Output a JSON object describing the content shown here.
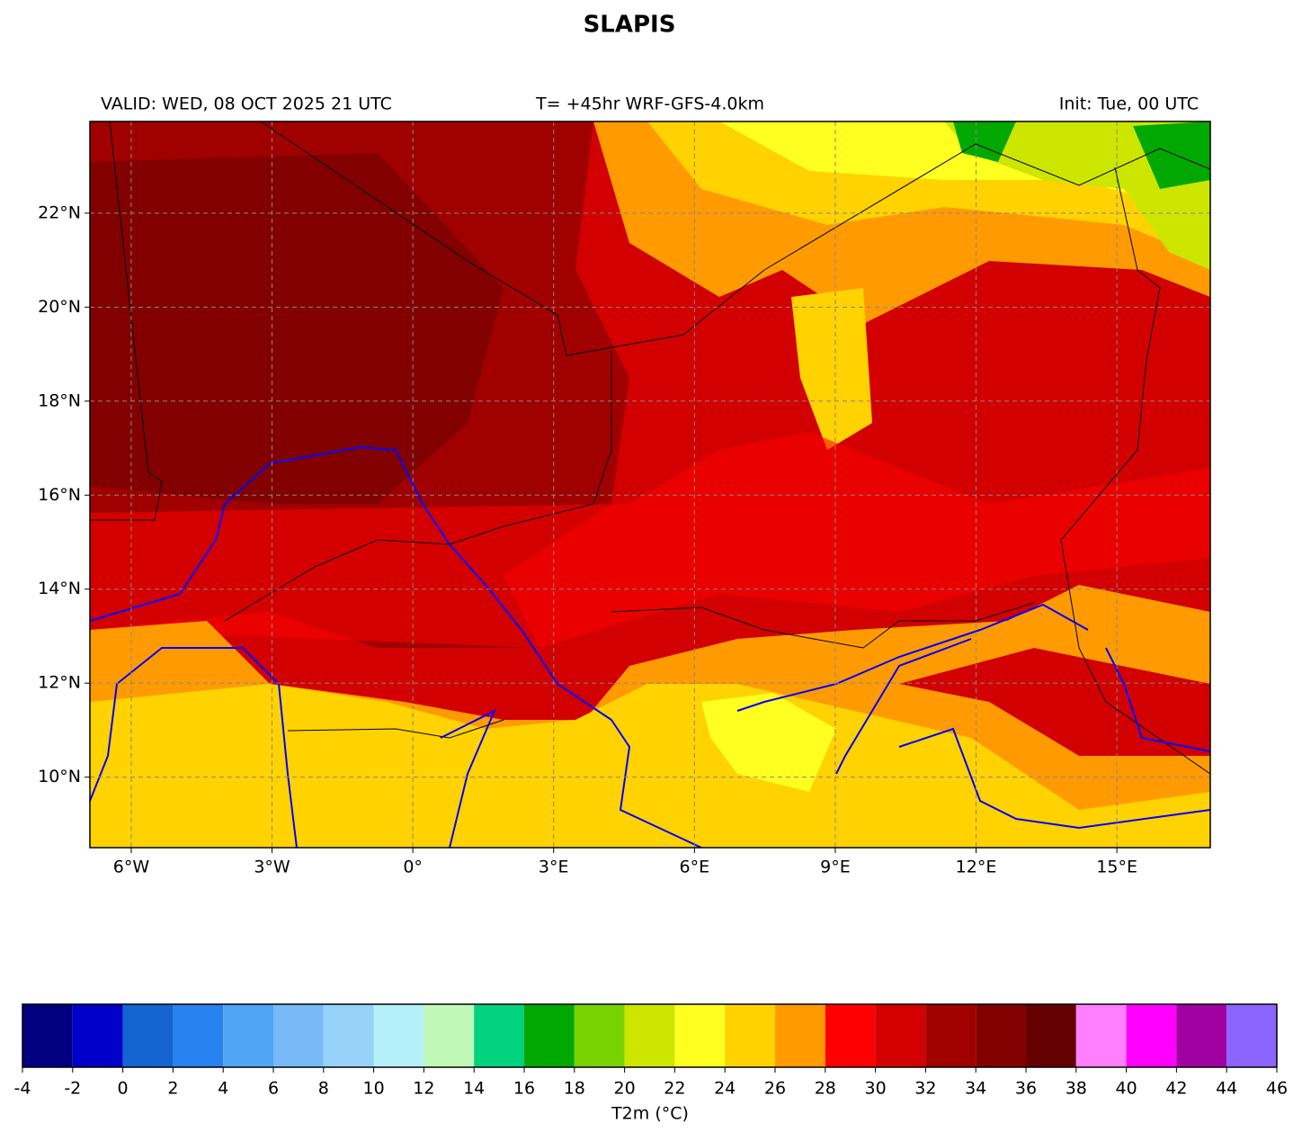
{
  "title": "SLAPIS",
  "header": {
    "valid": "VALID: WED, 08 OCT 2025 21 UTC",
    "run": "T= +45hr WRF-GFS-4.0km",
    "init": "Init: Tue, 00 UTC"
  },
  "map": {
    "xlim": [
      -6.88,
      16.99
    ],
    "ylim": [
      8.5,
      23.95
    ],
    "xticks": [
      {
        "value": -6,
        "label": "6°W"
      },
      {
        "value": -3,
        "label": "3°W"
      },
      {
        "value": 0,
        "label": "0°"
      },
      {
        "value": 3,
        "label": "3°E"
      },
      {
        "value": 6,
        "label": "6°E"
      },
      {
        "value": 9,
        "label": "9°E"
      },
      {
        "value": 12,
        "label": "12°E"
      },
      {
        "value": 15,
        "label": "15°E"
      }
    ],
    "yticks": [
      {
        "value": 10,
        "label": "10°N"
      },
      {
        "value": 12,
        "label": "12°N"
      },
      {
        "value": 14,
        "label": "14°N"
      },
      {
        "value": 16,
        "label": "16°N"
      },
      {
        "value": 18,
        "label": "18°N"
      },
      {
        "value": 20,
        "label": "20°N"
      },
      {
        "value": 22,
        "label": "22°N"
      }
    ],
    "grid": true
  },
  "colorbar": {
    "label": "T2m (°C)",
    "ticks": [
      -4,
      -2,
      0,
      2,
      4,
      6,
      8,
      10,
      12,
      14,
      16,
      18,
      20,
      22,
      24,
      26,
      28,
      30,
      32,
      34,
      36,
      38,
      40,
      42,
      44,
      46
    ],
    "colors": [
      "#000080",
      "#0000c8",
      "#1464d2",
      "#2882f0",
      "#50a5f5",
      "#78b9fa",
      "#96d2fa",
      "#b4f0fa",
      "#c0f8b8",
      "#00d27d",
      "#00a800",
      "#78d200",
      "#cce600",
      "#ffff20",
      "#ffd200",
      "#ff9b00",
      "#ff0000",
      "#d20000",
      "#a00000",
      "#820000",
      "#640000",
      "#ff80ff",
      "#ff00ff",
      "#a000a0",
      "#8c64ff"
    ]
  }
}
